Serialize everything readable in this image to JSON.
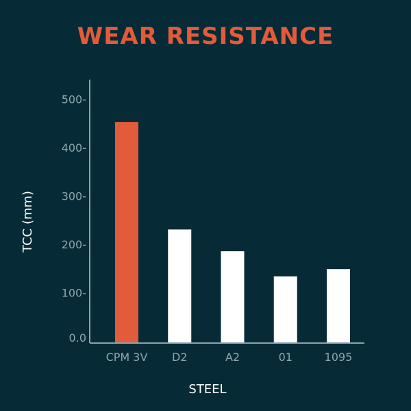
{
  "chart_data": {
    "type": "bar",
    "title": "WEAR RESISTANCE",
    "xlabel": "STEEL",
    "ylabel": "TCC (mm)",
    "categories": [
      "CPM 3V",
      "D2",
      "A2",
      "01",
      "1095"
    ],
    "values": [
      457,
      235,
      190,
      138,
      153
    ],
    "ylim": [
      0,
      545
    ],
    "yticks": [
      0,
      100,
      200,
      300,
      400,
      500
    ],
    "ytick_labels": [
      "0.0",
      "100-",
      "200-",
      "300-",
      "400-",
      "500-"
    ],
    "grid": false,
    "legend": "none"
  },
  "colors": {
    "background": "#062b36",
    "title": "#e25b3a",
    "highlight_bar": "#e25b3a",
    "bar": "#ffffff",
    "axis": "#8aa3ab",
    "tick_text": "#8fa6ad",
    "label_text": "#ffffff"
  }
}
